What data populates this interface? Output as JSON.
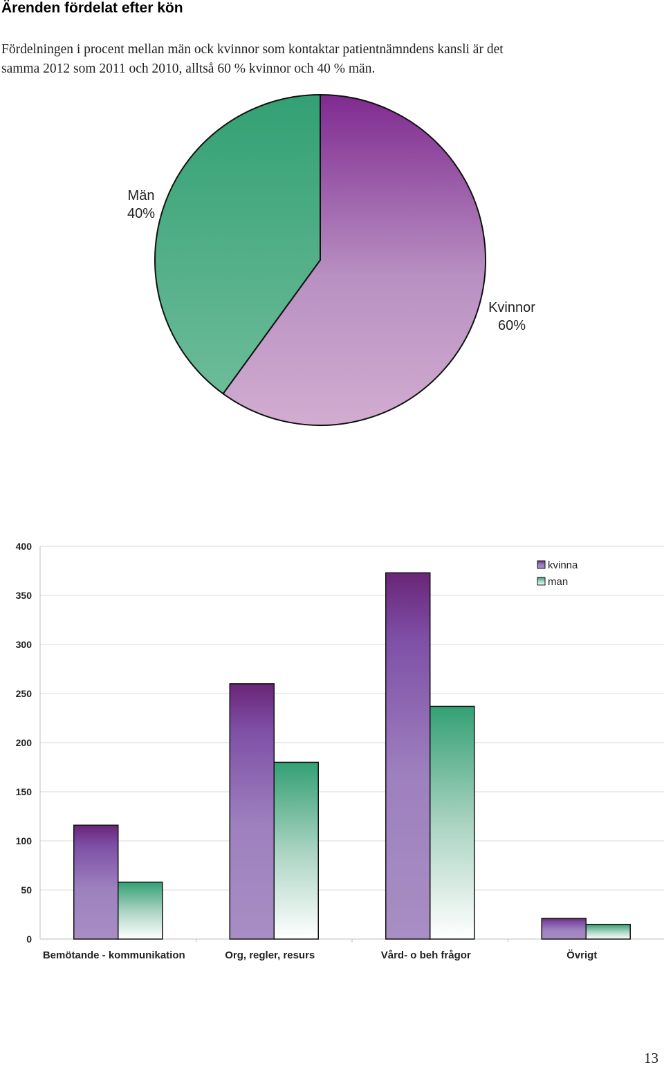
{
  "page": {
    "heading": "Ärenden fördelat efter kön",
    "intro_line1": "Fördelningen i procent mellan män ock kvinnor som kontaktar patientnämndens kansli är det",
    "intro_line2": "samma 2012 som 2011 och 2010, alltså 60 % kvinnor och 40 % män.",
    "page_number": "13"
  },
  "colors": {
    "kvinna_dark": "#6a2577",
    "kvinna_mid": "#7e4fa6",
    "kvinna_light": "#a88ec4",
    "man_dark": "#33a074",
    "man_light": "#ffffff",
    "pie_kvinna_top": "#7f2a90",
    "pie_kvinna_bottom": "#d2acd0",
    "pie_man_top": "#33a074",
    "pie_man_bottom": "#6dbc9a",
    "grid": "#d9d9d9"
  },
  "chart_data": [
    {
      "type": "pie",
      "title": "",
      "slices": [
        {
          "label": "Kvinnor",
          "value": 60,
          "percent_label": "60%"
        },
        {
          "label": "Män",
          "value": 40,
          "percent_label": "40%"
        }
      ]
    },
    {
      "type": "bar",
      "title": "",
      "xlabel": "",
      "ylabel": "",
      "categories": [
        "Bemötande - kommunikation",
        "Org, regler, resurs",
        "Vård- o beh frågor",
        "Övrigt"
      ],
      "series": [
        {
          "name": "kvinna",
          "values": [
            116,
            260,
            373,
            21
          ]
        },
        {
          "name": "man",
          "values": [
            58,
            180,
            237,
            15
          ]
        }
      ],
      "ylim": [
        0,
        400
      ],
      "yticks": [
        "0",
        "50",
        "100",
        "150",
        "200",
        "250",
        "300",
        "350",
        "400"
      ],
      "grid": true,
      "legend": "top-right"
    }
  ]
}
